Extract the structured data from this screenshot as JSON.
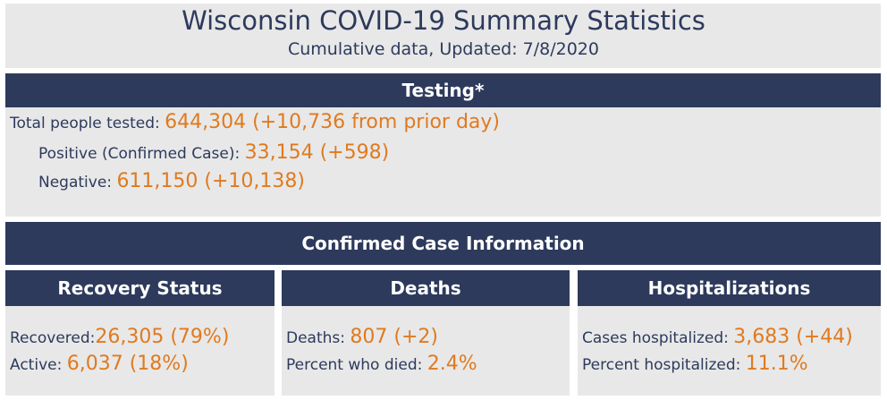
{
  "header": {
    "title": "Wisconsin COVID-19 Summary Statistics",
    "subtitle": "Cumulative data, Updated: 7/8/2020"
  },
  "testing": {
    "title": "Testing*",
    "rows": [
      {
        "label": "Total people tested:",
        "value": "644,304 (+10,736 from prior day)"
      },
      {
        "label": "Positive (Confirmed Case):",
        "value": "33,154 (+598)"
      },
      {
        "label": "Negative:",
        "value": "611,150 (+10,138)"
      }
    ]
  },
  "confirmed": {
    "title": "Confirmed Case Information",
    "panels": [
      {
        "title": "Recovery Status",
        "rows": [
          {
            "label": "Recovered:",
            "value": "26,305 (79%)"
          },
          {
            "label": "Active:",
            "value": "6,037 (18%)"
          }
        ]
      },
      {
        "title": "Deaths",
        "rows": [
          {
            "label": "Deaths:",
            "value": "807 (+2)"
          },
          {
            "label": "Percent who died:",
            "value": "2.4%"
          }
        ]
      },
      {
        "title": "Hospitalizations",
        "rows": [
          {
            "label": "Cases hospitalized:",
            "value": "3,683 (+44)"
          },
          {
            "label": "Percent hospitalized:",
            "value": "11.1%"
          }
        ]
      }
    ]
  }
}
